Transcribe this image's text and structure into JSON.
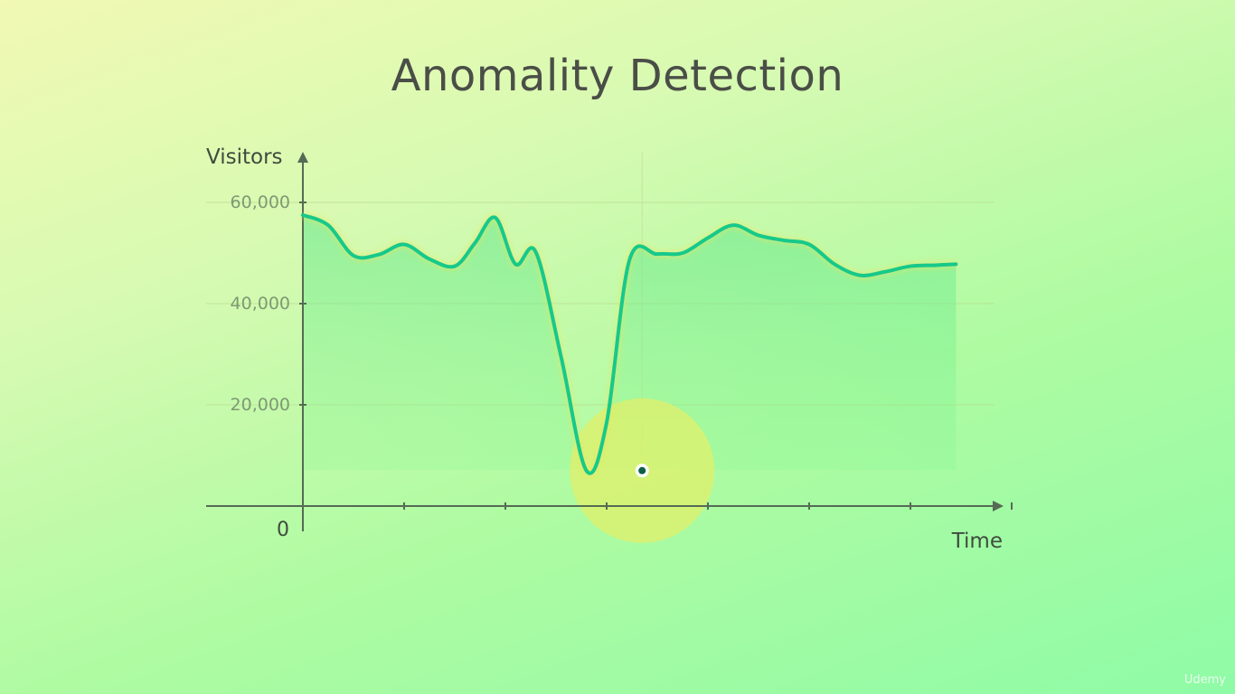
{
  "title": "Anomality Detection",
  "watermark": "Udemy",
  "chart_data": {
    "type": "line",
    "title": "Anomality Detection",
    "xlabel": "Time",
    "ylabel": "Visitors",
    "origin_label": "0",
    "y_ticks": [
      20000,
      40000,
      60000
    ],
    "y_tick_labels": [
      "20,000",
      "40,000",
      "60,000"
    ],
    "ylim": [
      0,
      60000
    ],
    "x_tick_count": 7,
    "grid": "horizontal",
    "x": [
      0,
      0.5,
      1,
      1.5,
      2,
      2.5,
      3,
      3.4,
      3.8,
      4.2,
      4.6,
      5.1,
      5.6,
      6,
      6.45,
      7,
      7.5,
      8,
      8.5,
      9,
      9.5,
      10,
      10.5,
      11,
      11.5,
      12,
      12.5,
      12.9
    ],
    "values": [
      57500,
      55500,
      49500,
      49700,
      51700,
      48800,
      47400,
      52000,
      57000,
      47800,
      50200,
      29500,
      7000,
      16500,
      48600,
      49800,
      50000,
      53000,
      55500,
      53500,
      52500,
      51700,
      47800,
      45600,
      46300,
      47400,
      47600,
      47800
    ],
    "anomaly": {
      "x": 6.7,
      "value": 7000
    },
    "colors": {
      "line": "#16c98a",
      "fill": "#6ef28f",
      "axis": "#556b55",
      "highlight": "#e0f06a",
      "point": "#0e5f45"
    }
  }
}
